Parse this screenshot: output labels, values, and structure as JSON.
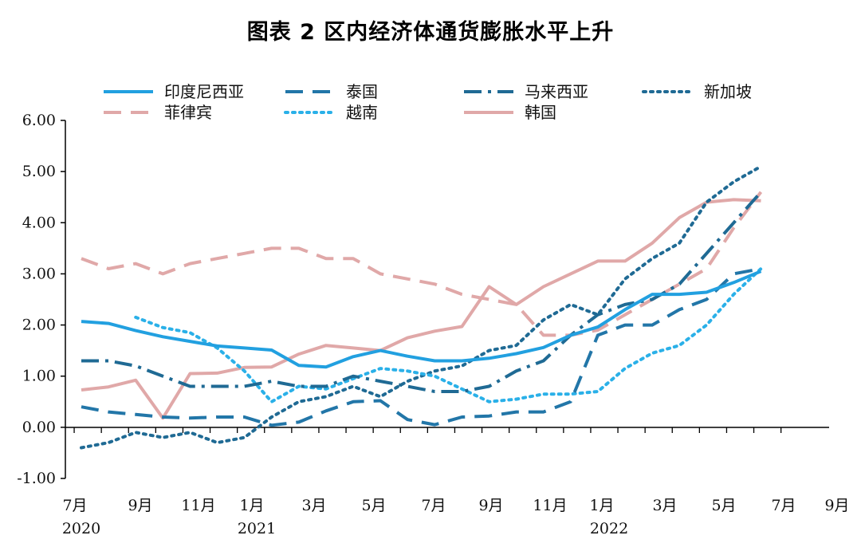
{
  "chart_data": {
    "type": "line",
    "title": "图表 2 区内经济体通货膨胀水平上升",
    "xlabel": "",
    "ylabel": "",
    "ylim": [
      -1.0,
      6.0
    ],
    "y_ticks": [
      "-1.00",
      "0.00",
      "1.00",
      "2.00",
      "3.00",
      "4.00",
      "5.00",
      "6.00"
    ],
    "x_month_labels": [
      "7月",
      "9月",
      "11月",
      "1月",
      "3月",
      "5月",
      "7月",
      "9月",
      "11月",
      "1月",
      "3月",
      "5月",
      "7月",
      "9月"
    ],
    "x_year_labels": [
      "2020",
      "2021",
      "2022"
    ],
    "x_months": [
      "2020-07",
      "2020-08",
      "2020-09",
      "2020-10",
      "2020-11",
      "2020-12",
      "2021-01",
      "2021-02",
      "2021-03",
      "2021-04",
      "2021-05",
      "2021-06",
      "2021-07",
      "2021-08",
      "2021-09",
      "2021-10",
      "2021-11",
      "2021-12",
      "2022-01",
      "2022-02",
      "2022-03",
      "2022-04",
      "2022-05",
      "2022-06",
      "2022-07",
      "2022-08"
    ],
    "legend_position": "top",
    "series": [
      {
        "name": "印度尼西亚",
        "color": "#22a0e0",
        "style": "solid",
        "values": [
          2.07,
          2.03,
          1.89,
          1.77,
          1.68,
          1.59,
          1.55,
          1.51,
          1.21,
          1.18,
          1.38,
          1.5,
          1.39,
          1.3,
          1.3,
          1.35,
          1.44,
          1.56,
          1.8,
          1.96,
          2.3,
          2.6,
          2.6,
          2.64,
          2.83,
          3.05
        ]
      },
      {
        "name": "泰国",
        "color": "#2276a8",
        "style": "dash",
        "values": [
          0.4,
          0.3,
          0.25,
          0.2,
          0.18,
          0.2,
          0.2,
          0.04,
          0.1,
          0.32,
          0.5,
          0.52,
          0.15,
          0.05,
          0.2,
          0.22,
          0.3,
          0.3,
          0.5,
          1.8,
          2.0,
          2.0,
          2.3,
          2.5,
          3.0,
          3.1
        ]
      },
      {
        "name": "马来西亚",
        "color": "#1f6a94",
        "style": "dashdot",
        "values": [
          1.3,
          1.3,
          1.2,
          1.0,
          0.8,
          0.8,
          0.8,
          0.9,
          0.8,
          0.8,
          1.0,
          0.9,
          0.8,
          0.7,
          0.7,
          0.8,
          1.1,
          1.3,
          1.8,
          2.2,
          2.4,
          2.5,
          2.8,
          3.4,
          4.0,
          4.6
        ]
      },
      {
        "name": "新加坡",
        "color": "#1f6a94",
        "style": "dot",
        "values": [
          -0.4,
          -0.3,
          -0.1,
          -0.2,
          -0.1,
          -0.3,
          -0.2,
          0.2,
          0.5,
          0.6,
          0.8,
          0.6,
          0.9,
          1.1,
          1.2,
          1.5,
          1.6,
          2.1,
          2.4,
          2.2,
          2.9,
          3.3,
          3.6,
          4.4,
          4.8,
          5.1
        ]
      },
      {
        "name": "菲律宾",
        "color": "#e0a8a8",
        "style": "dash",
        "values": [
          3.3,
          3.1,
          3.2,
          3.0,
          3.2,
          3.3,
          3.4,
          3.5,
          3.5,
          3.3,
          3.3,
          3.0,
          2.9,
          2.8,
          2.6,
          2.5,
          2.4,
          1.8,
          1.8,
          1.9,
          2.2,
          2.5,
          2.8,
          3.1,
          3.9,
          4.6
        ]
      },
      {
        "name": "越南",
        "color": "#2ab0e8",
        "style": "dot",
        "values": null,
        "values_from_sep_2020": [
          2.15,
          1.95,
          1.85,
          1.55,
          1.1,
          0.5,
          0.8,
          0.75,
          0.95,
          1.15,
          1.1,
          1.0,
          0.75,
          0.5,
          0.55,
          0.65,
          0.65,
          0.7,
          1.15,
          1.45,
          1.6,
          2.0,
          2.6,
          3.1
        ]
      },
      {
        "name": "韩国",
        "color": "#e0a8a8",
        "style": "solid",
        "values": [
          0.73,
          0.79,
          0.92,
          0.18,
          1.05,
          1.06,
          1.17,
          1.18,
          1.43,
          1.6,
          1.55,
          1.5,
          1.75,
          1.88,
          1.97,
          2.75,
          2.4,
          2.75,
          3.0,
          3.25,
          3.25,
          3.6,
          4.1,
          4.4,
          4.45,
          4.43
        ]
      }
    ]
  },
  "legend": {
    "row1": [
      "印度尼西亚",
      "泰国",
      "马来西亚",
      "新加坡"
    ],
    "row2": [
      "菲律宾",
      "越南",
      "韩国"
    ]
  }
}
